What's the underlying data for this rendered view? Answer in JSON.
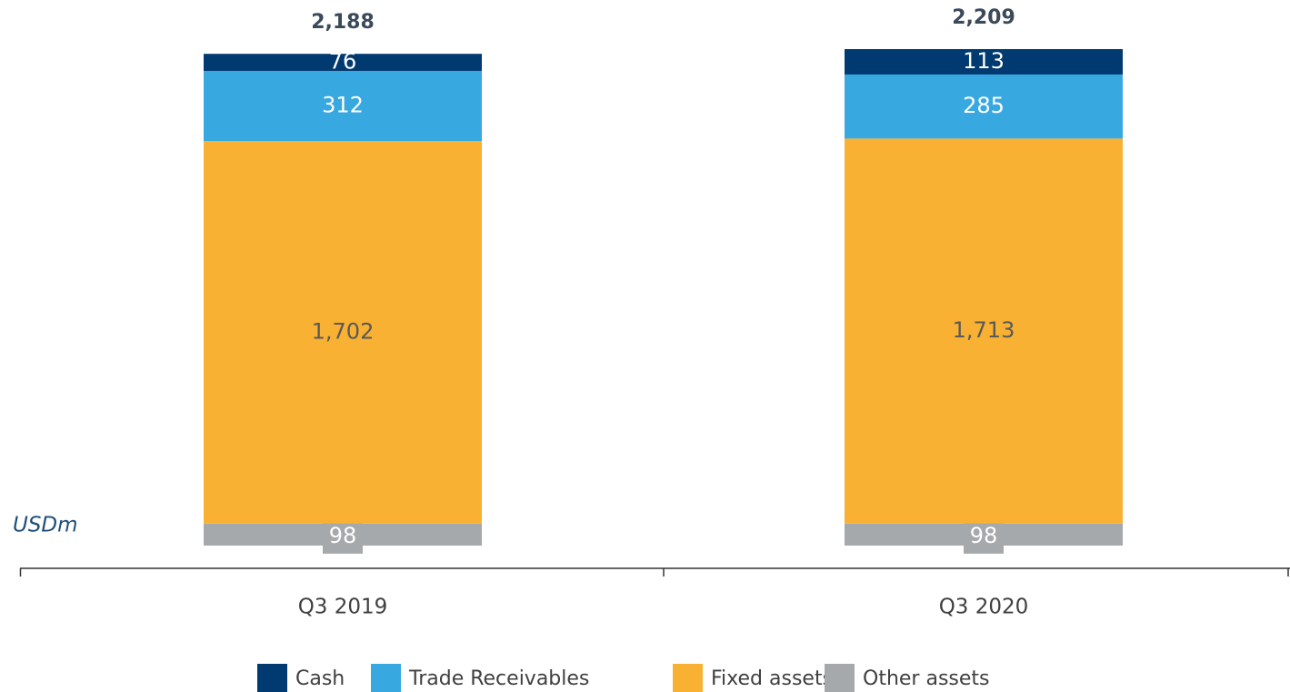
{
  "chart_data": {
    "type": "stacked_bar",
    "unit_label": "USDm",
    "categories": [
      "Q3 2019",
      "Q3 2020"
    ],
    "series": [
      {
        "name": "Cash",
        "color": "#003a70",
        "values": [
          76,
          113
        ]
      },
      {
        "name": "Trade Receivables",
        "color": "#38a8e0",
        "values": [
          312,
          285
        ]
      },
      {
        "name": "Fixed assets",
        "color": "#f8b133",
        "values": [
          1702,
          1713
        ],
        "value_labels": [
          "1,702",
          "1,713"
        ]
      },
      {
        "name": "Other assets",
        "color": "#a6a9ac",
        "values": [
          98,
          98
        ]
      }
    ],
    "totals": [
      2188,
      2209
    ],
    "total_labels": [
      "2,188",
      "2,209"
    ]
  }
}
